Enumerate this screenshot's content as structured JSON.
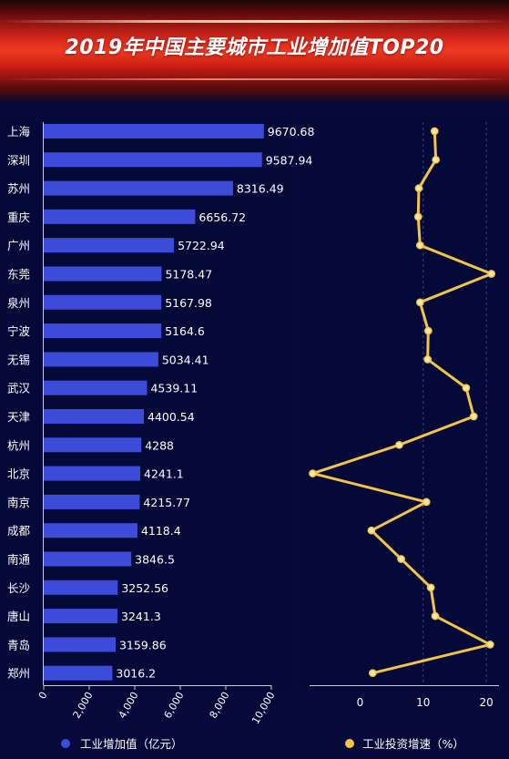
{
  "title": "2019年中国主要城市工业增加值TOP20",
  "colors": {
    "bar": "#3c4cd8",
    "line": "#f0c54a",
    "background": "#07093a",
    "text": "#ffffff"
  },
  "chart_data": [
    {
      "type": "bar",
      "orientation": "horizontal",
      "categories": [
        "上海",
        "深圳",
        "苏州",
        "重庆",
        "广州",
        "东莞",
        "泉州",
        "宁波",
        "无锡",
        "武汉",
        "天津",
        "杭州",
        "北京",
        "南京",
        "成都",
        "南通",
        "长沙",
        "唐山",
        "青岛",
        "郑州"
      ],
      "series": [
        {
          "name": "工业增加值（亿元）",
          "values": [
            9670.68,
            9587.94,
            8316.49,
            6656.72,
            5722.94,
            5178.47,
            5167.98,
            5164.6,
            5034.41,
            4539.11,
            4400.54,
            4288,
            4241.1,
            4215.77,
            4118.4,
            3846.5,
            3252.56,
            3241.3,
            3159.86,
            3016.2
          ],
          "labels": [
            "9670.68",
            "9587.94",
            "8316.49",
            "6656.72",
            "5722.94",
            "5178.47",
            "5167.98",
            "5164.6",
            "5034.41",
            "4539.11",
            "4400.54",
            "4288",
            "4241.1",
            "4215.77",
            "4118.4",
            "3846.5",
            "3252.56",
            "3241.3",
            "3159.86",
            "3016.2"
          ]
        }
      ],
      "xlim": [
        0,
        10000
      ],
      "xticks": [
        "0",
        "2,000",
        "4,000",
        "6,000",
        "8,000",
        "10,000"
      ],
      "xtick_values": [
        0,
        2000,
        4000,
        6000,
        8000,
        10000
      ],
      "legend": "bottom"
    },
    {
      "type": "line",
      "orientation": "vertical-categories",
      "categories": [
        "上海",
        "深圳",
        "苏州",
        "重庆",
        "广州",
        "东莞",
        "泉州",
        "宁波",
        "无锡",
        "武汉",
        "天津",
        "杭州",
        "北京",
        "南京",
        "成都",
        "南通",
        "长沙",
        "唐山",
        "青岛",
        "郑州"
      ],
      "series": [
        {
          "name": "工业投资增速（%）",
          "values": [
            11.8,
            12,
            9.3,
            9.2,
            9.5,
            20.8,
            9.5,
            10.8,
            10.7,
            16.8,
            18,
            6.2,
            -7.5,
            10.5,
            1.8,
            6.5,
            11.2,
            11.9,
            20.6,
            2
          ]
        }
      ],
      "xlim": [
        -8,
        22
      ],
      "xticks": [
        "0",
        "10",
        "20"
      ],
      "xtick_values": [
        0,
        10,
        20
      ],
      "grid": "vertical dashed at 10 and 20",
      "legend": "bottom"
    }
  ]
}
